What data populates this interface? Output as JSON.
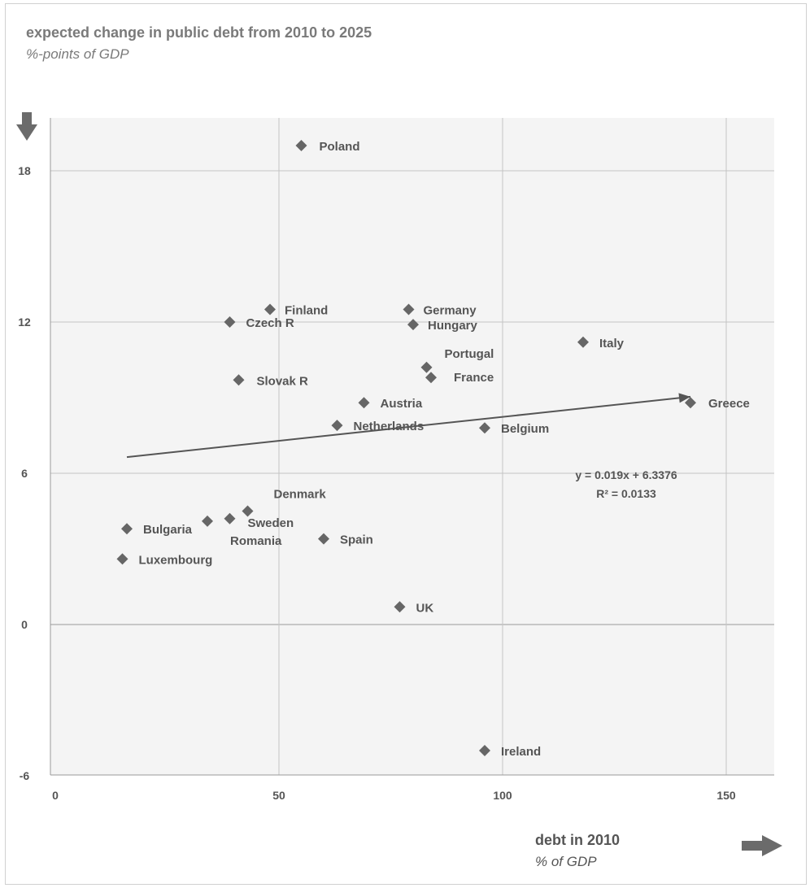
{
  "chart_data": {
    "type": "scatter",
    "title": "expected change in public debt from 2010 to 2025",
    "subtitle": "%-points of GDP",
    "xlabel": "debt in 2010",
    "xlabel_sub": "% of GDP",
    "xlim": [
      0,
      160
    ],
    "ylim": [
      -6,
      20
    ],
    "xticks": [
      0,
      50,
      100,
      150
    ],
    "yticks": [
      -6,
      0,
      6,
      12,
      18
    ],
    "grid": true,
    "marker_color": "#666666",
    "points": [
      {
        "label": "Poland",
        "x": 55,
        "y": 19.0
      },
      {
        "label": "Finland",
        "x": 48,
        "y": 12.5
      },
      {
        "label": "Czech R",
        "x": 39,
        "y": 12.0
      },
      {
        "label": "Germany",
        "x": 79,
        "y": 12.5
      },
      {
        "label": "Hungary",
        "x": 80,
        "y": 11.9
      },
      {
        "label": "Italy",
        "x": 118,
        "y": 11.2
      },
      {
        "label": "Portugal",
        "x": 83,
        "y": 10.2
      },
      {
        "label": "France",
        "x": 84,
        "y": 9.8
      },
      {
        "label": "Slovak R",
        "x": 41,
        "y": 9.7
      },
      {
        "label": "Austria",
        "x": 69,
        "y": 8.8
      },
      {
        "label": "Greece",
        "x": 142,
        "y": 8.8
      },
      {
        "label": "Netherlands",
        "x": 63,
        "y": 7.9
      },
      {
        "label": "Belgium",
        "x": 96,
        "y": 7.8
      },
      {
        "label": "Denmark",
        "x": 43,
        "y": 4.5
      },
      {
        "label": "Sweden",
        "x": 39,
        "y": 4.2
      },
      {
        "label": "Romania",
        "x": 34,
        "y": 4.1
      },
      {
        "label": "Bulgaria",
        "x": 16,
        "y": 3.8
      },
      {
        "label": "Spain",
        "x": 60,
        "y": 3.4
      },
      {
        "label": "Luxembourg",
        "x": 15,
        "y": 2.6
      },
      {
        "label": "UK",
        "x": 77,
        "y": 0.7
      },
      {
        "label": "Ireland",
        "x": 96,
        "y": -5.0
      }
    ],
    "trendline": {
      "slope": 0.019,
      "intercept": 6.3376,
      "x_start": 16,
      "x_end": 142
    },
    "annotations": [
      "y = 0.019x + 6.3376",
      "R² = 0.0133"
    ]
  }
}
